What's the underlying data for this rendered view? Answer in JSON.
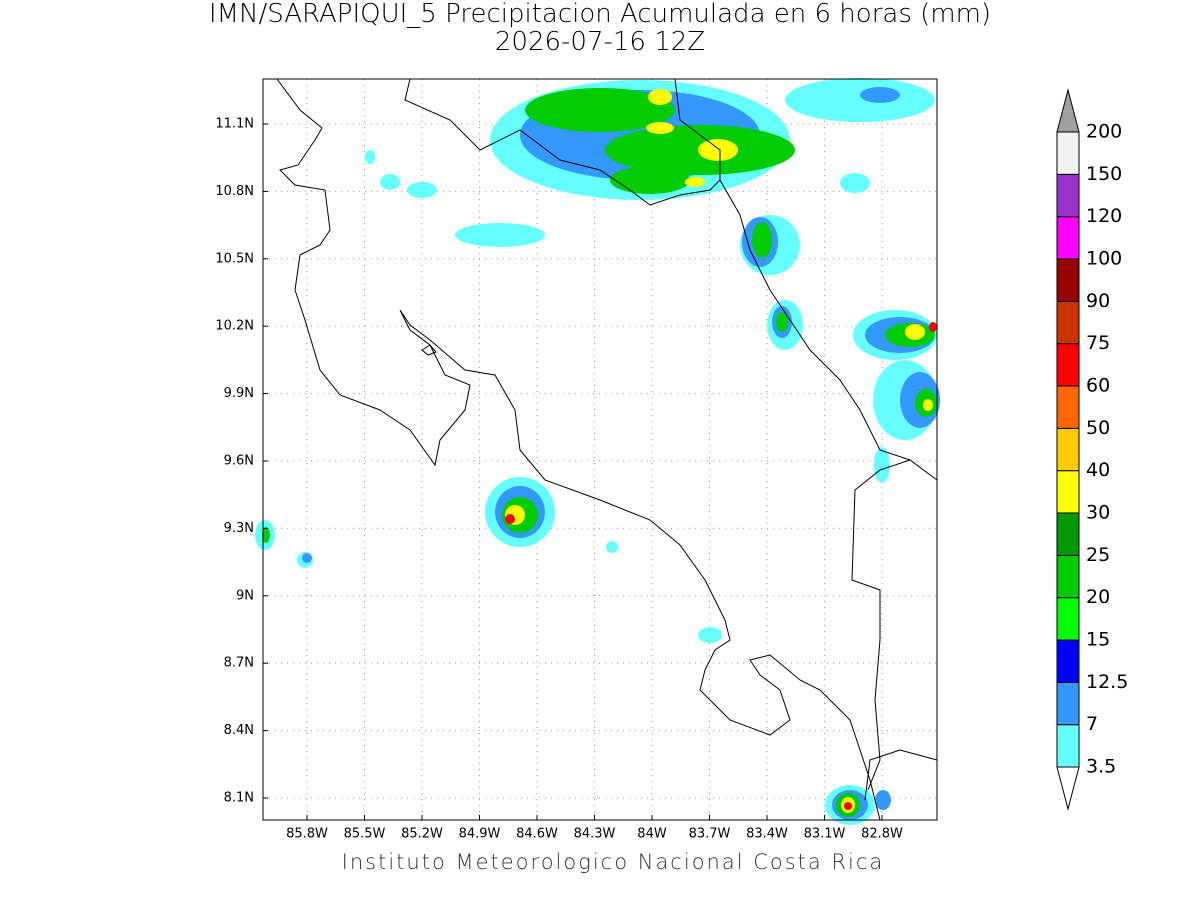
{
  "header": {
    "title": "IMN/SARAPIQUI_5 Precipitacion Acumulada en 6 horas (mm)",
    "subtitle": "2026-07-16 12Z"
  },
  "map": {
    "xticks": [
      "85.8W",
      "85.5W",
      "85.2W",
      "84.9W",
      "84.6W",
      "84.3W",
      "84W",
      "83.7W",
      "83.4W",
      "83.1W",
      "82.8W"
    ],
    "yticks": [
      "11.1N",
      "10.8N",
      "10.5N",
      "10.2N",
      "9.9N",
      "9.6N",
      "9.3N",
      "9N",
      "8.7N",
      "8.4N",
      "8.1N"
    ]
  },
  "legend": {
    "levels": [
      "3.5",
      "7",
      "12.5",
      "15",
      "20",
      "25",
      "30",
      "40",
      "50",
      "60",
      "75",
      "90",
      "100",
      "120",
      "150",
      "200"
    ],
    "colors": [
      "#66ffff",
      "#3399ff",
      "#0000ff",
      "#00ff00",
      "#00cc00",
      "#009900",
      "#ffff00",
      "#ffcc00",
      "#ff6600",
      "#ff0000",
      "#cc3300",
      "#990000",
      "#ff00ff",
      "#9933cc",
      "#f2f2f2"
    ],
    "over_color": "#a0a0a0",
    "under_color": "#ffffff"
  },
  "footer": "Instituto Meteorologico Nacional Costa Rica"
}
